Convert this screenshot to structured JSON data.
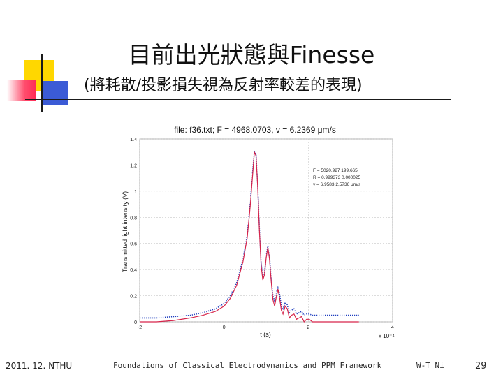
{
  "slide": {
    "title": "目前出光狀態與Finesse",
    "subtitle": "(將耗散/投影損失視為反射率較差的表現)",
    "footer_date": "2011. 12. NTHU",
    "footer_course": "Foundations of Classical Electrodynamics and PPM Framework",
    "footer_author": "W-T Ni",
    "page_number": "29"
  },
  "colors": {
    "measured": "#1f3fbf",
    "fit": "#d6244a",
    "accent_yellow": "#ffd700",
    "accent_blue": "#3b5bd6",
    "accent_red": "#ff2a55"
  },
  "chart_data": {
    "type": "line",
    "title": "file:  f36.txt;  F = 4968.0703,  v = 6.2369 μm/s",
    "xlabel": "t (s)",
    "ylabel": "Transmitted light intensity  (V)",
    "x_multiplier": "x 10⁻⁴",
    "xlim": [
      -2,
      4
    ],
    "ylim": [
      0,
      1.4
    ],
    "xticks": [
      "-2",
      "0",
      "2",
      "4"
    ],
    "yticks": [
      "0",
      "0.2",
      "0.4",
      "0.6",
      "0.8",
      "1",
      "1.2",
      "1.4"
    ],
    "grid": true,
    "annotation": [
      "F = 5020.927    199.665",
      "R = 0.999373    0.000025",
      "v = 6.9583    2.5736 μm/s"
    ],
    "series": [
      {
        "style": "dotted",
        "color": "#1f3fbf",
        "x": [
          -2.0,
          -1.6,
          -1.2,
          -0.8,
          -0.5,
          -0.2,
          0.0,
          0.15,
          0.3,
          0.45,
          0.55,
          0.62,
          0.68,
          0.72,
          0.76,
          0.8,
          0.84,
          0.88,
          0.92,
          0.96,
          1.0,
          1.04,
          1.08,
          1.12,
          1.16,
          1.2,
          1.24,
          1.28,
          1.32,
          1.36,
          1.4,
          1.45,
          1.5,
          1.55,
          1.6,
          1.66,
          1.72,
          1.78,
          1.84,
          1.9,
          1.96,
          2.02,
          2.1,
          2.2,
          2.3,
          2.45,
          2.6,
          2.8,
          3.0,
          3.2
        ],
        "y": [
          0.03,
          0.03,
          0.04,
          0.05,
          0.07,
          0.1,
          0.14,
          0.2,
          0.3,
          0.48,
          0.66,
          0.9,
          1.15,
          1.31,
          1.28,
          1.05,
          0.72,
          0.45,
          0.34,
          0.37,
          0.5,
          0.58,
          0.5,
          0.33,
          0.2,
          0.16,
          0.22,
          0.27,
          0.21,
          0.12,
          0.1,
          0.15,
          0.13,
          0.07,
          0.09,
          0.1,
          0.06,
          0.07,
          0.08,
          0.05,
          0.06,
          0.06,
          0.05,
          0.05,
          0.05,
          0.05,
          0.05,
          0.05,
          0.05,
          0.05
        ]
      },
      {
        "style": "solid",
        "color": "#d6244a",
        "x": [
          -2.0,
          -1.6,
          -1.2,
          -0.8,
          -0.5,
          -0.2,
          0.0,
          0.15,
          0.3,
          0.45,
          0.55,
          0.62,
          0.68,
          0.72,
          0.76,
          0.8,
          0.84,
          0.88,
          0.92,
          0.96,
          1.0,
          1.04,
          1.08,
          1.12,
          1.16,
          1.2,
          1.24,
          1.28,
          1.32,
          1.36,
          1.4,
          1.45,
          1.5,
          1.55,
          1.6,
          1.66,
          1.72,
          1.78,
          1.84,
          1.9,
          1.96,
          2.02,
          2.1,
          2.2,
          2.3,
          2.45,
          2.6,
          2.8,
          3.0,
          3.2
        ],
        "y": [
          0.0,
          0.0,
          0.01,
          0.03,
          0.05,
          0.08,
          0.12,
          0.18,
          0.28,
          0.46,
          0.64,
          0.88,
          1.13,
          1.3,
          1.27,
          1.03,
          0.7,
          0.43,
          0.32,
          0.36,
          0.49,
          0.57,
          0.48,
          0.31,
          0.17,
          0.12,
          0.19,
          0.25,
          0.18,
          0.09,
          0.06,
          0.12,
          0.1,
          0.03,
          0.05,
          0.06,
          0.02,
          0.03,
          0.04,
          0.0,
          0.02,
          0.02,
          0.0,
          0.0,
          0.0,
          0.0,
          0.0,
          0.0,
          0.0,
          0.0
        ]
      }
    ]
  }
}
